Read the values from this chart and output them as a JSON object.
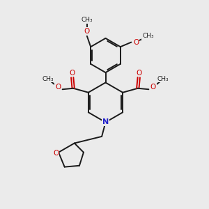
{
  "bg_color": "#ebebeb",
  "bond_color": "#1a1a1a",
  "oxygen_color": "#cc0000",
  "nitrogen_color": "#2222cc",
  "figsize": [
    3.0,
    3.0
  ],
  "dpi": 100,
  "xlim": [
    0,
    10
  ],
  "ylim": [
    0,
    10
  ]
}
